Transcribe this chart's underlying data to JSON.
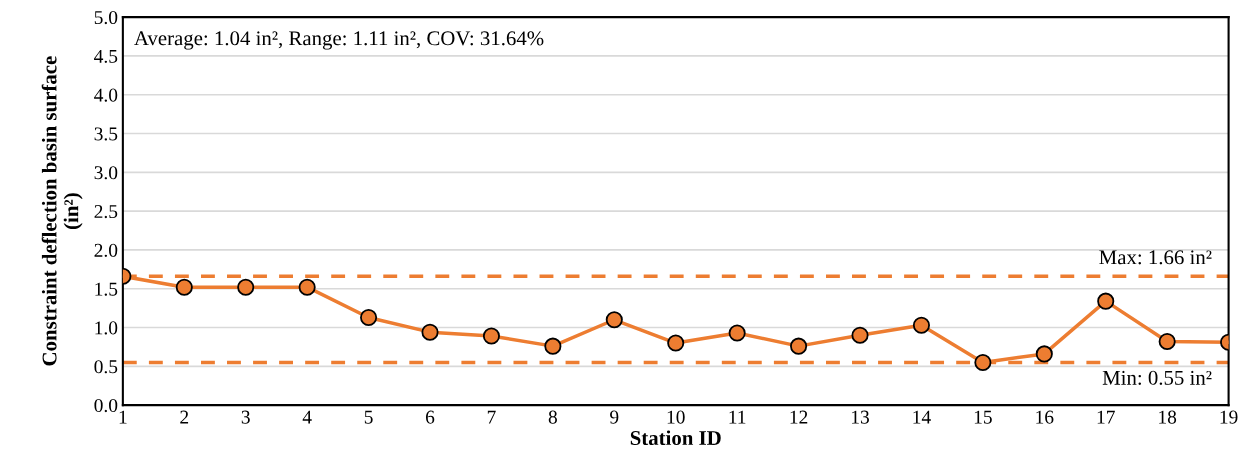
{
  "chart_data": {
    "type": "line",
    "xlabel": "Station ID",
    "ylabel": "Constraint deflection basin surface\n(in²)",
    "categories": [
      "1",
      "2",
      "3",
      "4",
      "5",
      "6",
      "7",
      "8",
      "9",
      "10",
      "11",
      "12",
      "13",
      "14",
      "15",
      "16",
      "17",
      "18",
      "19"
    ],
    "series": [
      {
        "color": "#ed7d31",
        "values": [
          1.66,
          1.52,
          1.52,
          1.52,
          1.13,
          0.94,
          0.89,
          0.76,
          1.1,
          0.8,
          0.93,
          0.76,
          0.9,
          1.03,
          0.55,
          0.66,
          1.34,
          0.82,
          0.81
        ]
      }
    ],
    "ylim": [
      0,
      5
    ],
    "yticks": [
      {
        "value": 0,
        "label": "0.0"
      },
      {
        "value": 0.5,
        "label": "0.5"
      },
      {
        "value": 1,
        "label": "1.0"
      },
      {
        "value": 1.5,
        "label": "1.5"
      },
      {
        "value": 2,
        "label": "2.0"
      },
      {
        "value": 2.5,
        "label": "2.5"
      },
      {
        "value": 3,
        "label": "3.0"
      },
      {
        "value": 3.5,
        "label": "3.5"
      },
      {
        "value": 4,
        "label": "4.0"
      },
      {
        "value": 4.5,
        "label": "4.5"
      },
      {
        "value": 5,
        "label": "5.0"
      }
    ],
    "ref_lines": [
      {
        "axis": "y",
        "value": 1.66,
        "label": "Max: 1.66 in²",
        "color": "#ed7d31",
        "line_style": "dashed"
      },
      {
        "axis": "y",
        "value": 0.55,
        "label": "Min: 0.55 in²",
        "color": "#ed7d31",
        "line_style": "dashed"
      }
    ],
    "annotations": [
      "Average: 1.04 in², Range: 1.11 in², COV: 31.64%"
    ],
    "grid": "y",
    "legend": false,
    "marker": "circle",
    "line_style": "solid"
  }
}
